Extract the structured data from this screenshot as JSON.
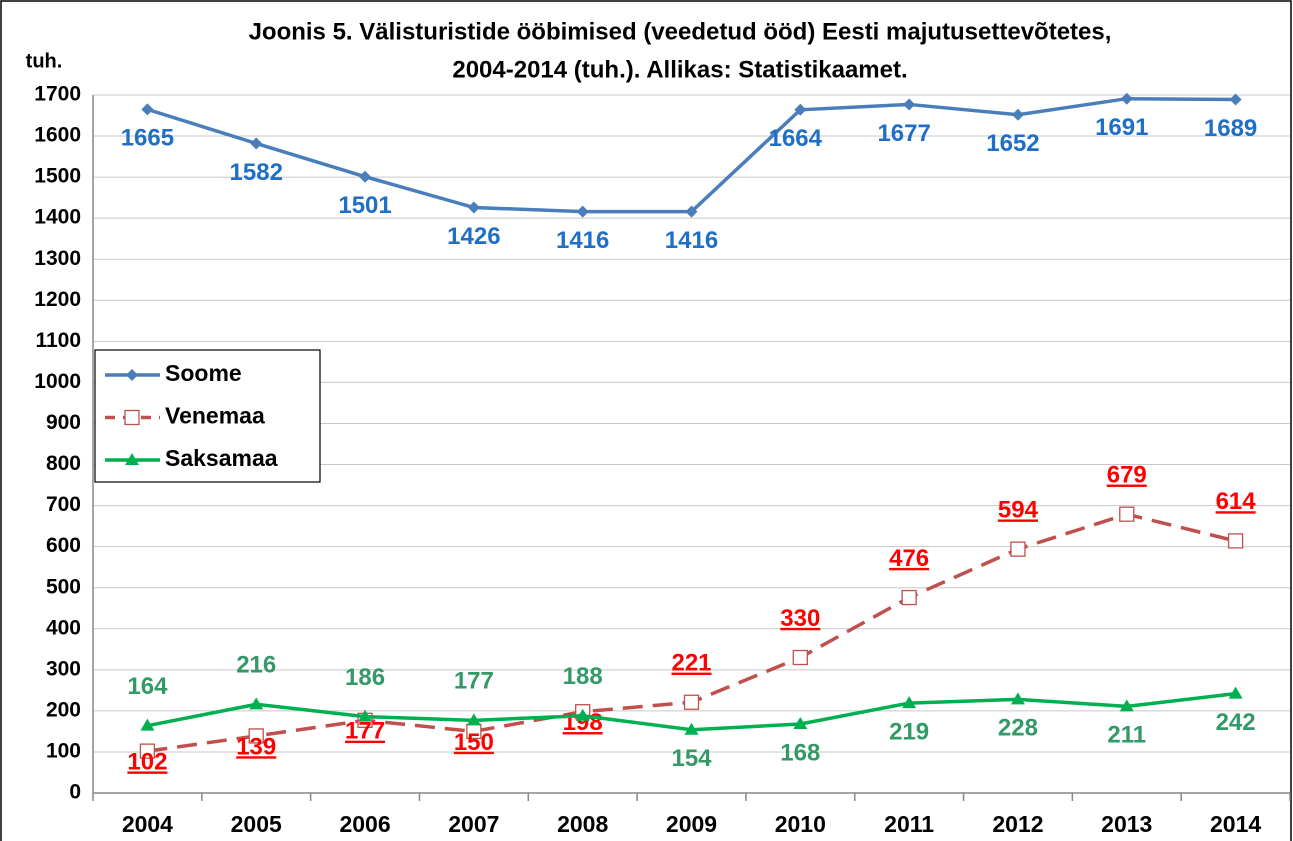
{
  "chart_data": {
    "type": "line",
    "title": "Joonis 5. Välisturistide ööbimised (veedetud ööd) Eesti majutusettevõtetes,",
    "subtitle": "2004-2014 (tuh.).  Allikas: Statistikaamet.",
    "y_label": "tuh.",
    "categories": [
      "2004",
      "2005",
      "2006",
      "2007",
      "2008",
      "2009",
      "2010",
      "2011",
      "2012",
      "2013",
      "2014"
    ],
    "series": [
      {
        "name": "Soome",
        "color": "#4a7ebb",
        "label_color": "#1f6fc6",
        "marker": "diamond",
        "dashed": false,
        "values": [
          1665,
          1582,
          1501,
          1426,
          1416,
          1416,
          1664,
          1677,
          1652,
          1691,
          1689
        ]
      },
      {
        "name": "Venemaa",
        "color": "#c0504d",
        "label_color": "#ff0000",
        "marker": "square",
        "dashed": true,
        "values": [
          102,
          139,
          177,
          150,
          198,
          221,
          330,
          476,
          594,
          679,
          614
        ]
      },
      {
        "name": "Saksamaa",
        "color": "#00b050",
        "label_color": "#339966",
        "marker": "triangle",
        "dashed": false,
        "values": [
          164,
          216,
          186,
          177,
          188,
          154,
          168,
          219,
          228,
          211,
          242
        ]
      }
    ],
    "ylim": [
      0,
      1700
    ],
    "yticks": [
      0,
      100,
      200,
      300,
      400,
      500,
      600,
      700,
      800,
      900,
      1000,
      1100,
      1200,
      1300,
      1400,
      1500,
      1600,
      1700
    ],
    "grid": true,
    "legend": "left"
  }
}
